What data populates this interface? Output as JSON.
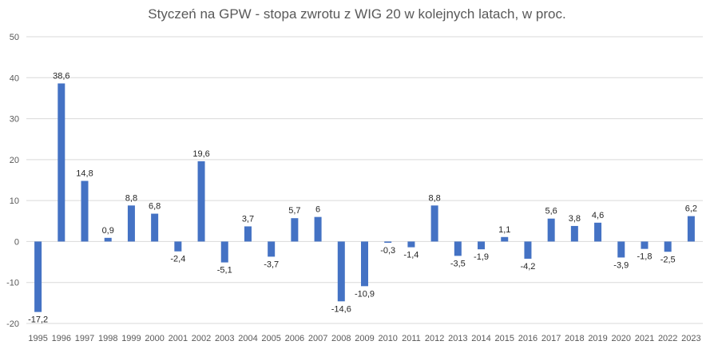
{
  "chart_data": {
    "type": "bar",
    "title": "Styczeń na GPW - stopa zwrotu z WIG 20 w kolejnych latach, w proc.",
    "categories": [
      "1995",
      "1996",
      "1997",
      "1998",
      "1999",
      "2000",
      "2001",
      "2002",
      "2003",
      "2004",
      "2005",
      "2006",
      "2007",
      "2008",
      "2009",
      "2010",
      "2011",
      "2012",
      "2013",
      "2014",
      "2015",
      "2016",
      "2017",
      "2018",
      "2019",
      "2020",
      "2021",
      "2022",
      "2023"
    ],
    "values": [
      -17.2,
      38.6,
      14.8,
      0.9,
      8.8,
      6.8,
      -2.4,
      19.6,
      -5.1,
      3.7,
      -3.7,
      5.7,
      6,
      -14.6,
      -10.9,
      -0.3,
      -1.4,
      8.8,
      -3.5,
      -1.9,
      1.1,
      -4.2,
      5.6,
      3.8,
      4.6,
      -3.9,
      -1.8,
      -2.5,
      6.2
    ],
    "data_labels": [
      "-17,2",
      "38,6",
      "14,8",
      "0,9",
      "8,8",
      "6,8",
      "-2,4",
      "19,6",
      "-5,1",
      "3,7",
      "-3,7",
      "5,7",
      "6",
      "-14,6",
      "-10,9",
      "-0,3",
      "-1,4",
      "8,8",
      "-3,5",
      "-1,9",
      "1,1",
      "-4,2",
      "5,6",
      "3,8",
      "4,6",
      "-3,9",
      "-1,8",
      "-2,5",
      "6,2"
    ],
    "ylim": [
      -20,
      50
    ],
    "yticks": [
      -20,
      -10,
      0,
      10,
      20,
      30,
      40,
      50
    ],
    "xlabel": "",
    "ylabel": "",
    "grid": true,
    "bar_color": "#4472C4",
    "grid_color": "#D9D9D9"
  }
}
